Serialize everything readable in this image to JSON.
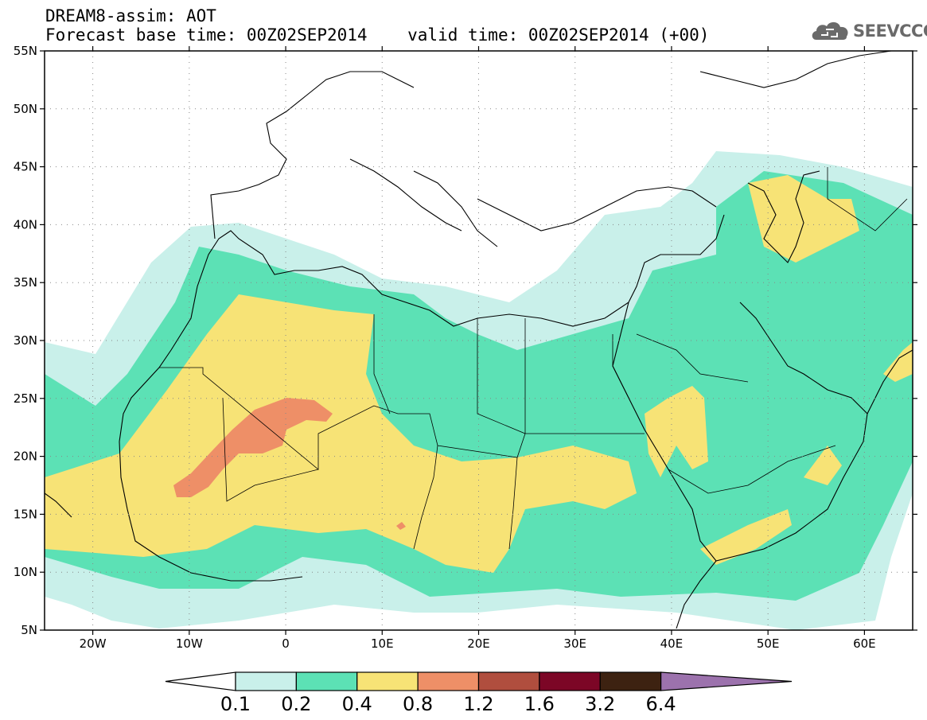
{
  "header": {
    "title_line1": "DREAM8-assim: AOT",
    "title_line2": "Forecast base time: 00Z02SEP2014    valid time: 00Z02SEP2014 (+00)"
  },
  "logo": {
    "text": "SEEVCCC",
    "icon": "cloud-icon"
  },
  "map": {
    "lon_range": [
      -25,
      65
    ],
    "lat_range": [
      5,
      55
    ],
    "lat_ticks": [
      "55N",
      "50N",
      "45N",
      "40N",
      "35N",
      "30N",
      "25N",
      "20N",
      "15N",
      "10N",
      "5N"
    ],
    "lon_ticks": [
      "20W",
      "10W",
      "0",
      "10E",
      "20E",
      "30E",
      "40E",
      "50E",
      "60E"
    ],
    "gridlines": "dotted"
  },
  "colorbar": {
    "boundaries": [
      "0.1",
      "0.2",
      "0.4",
      "0.8",
      "1.2",
      "1.6",
      "3.2",
      "6.4"
    ],
    "colors": [
      "#c9f0ea",
      "#5ce1b5",
      "#f7e376",
      "#ee8f67",
      "#b04e3e",
      "#7c0626",
      "#3d2211",
      "#9c72ad"
    ],
    "extend": "both"
  },
  "colors": {
    "bin_0_1": "#c9f0ea",
    "bin_0_2": "#5ce1b5",
    "bin_0_4": "#f7e376",
    "bin_0_8": "#ee8f67"
  }
}
